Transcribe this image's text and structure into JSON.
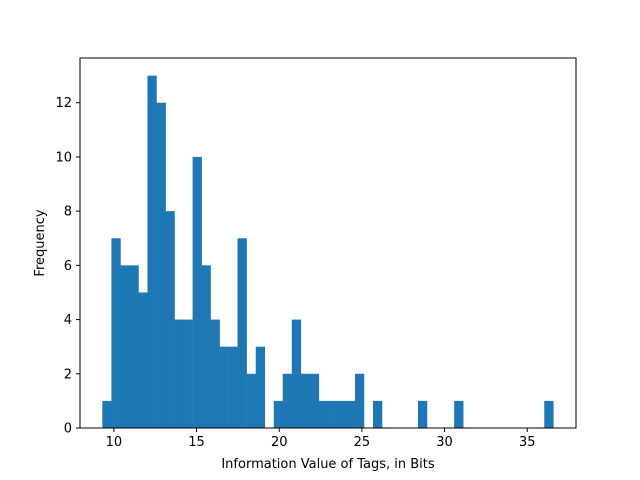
{
  "chart_data": {
    "type": "bar",
    "title": "",
    "xlabel": "Information Value of Tags, in Bits",
    "ylabel": "Frequency",
    "xlim": [
      7.95,
      37.95
    ],
    "ylim": [
      0,
      13.65
    ],
    "bin_width": 0.545,
    "x_ticks": [
      10,
      15,
      20,
      25,
      30,
      35
    ],
    "y_ticks": [
      0,
      2,
      4,
      6,
      8,
      10,
      12
    ],
    "bar_color": "#1f77b4",
    "grid": false,
    "bins": [
      {
        "x": 9.3,
        "count": 1
      },
      {
        "x": 9.85,
        "count": 7
      },
      {
        "x": 10.39,
        "count": 6
      },
      {
        "x": 10.94,
        "count": 6
      },
      {
        "x": 11.48,
        "count": 5
      },
      {
        "x": 12.03,
        "count": 13
      },
      {
        "x": 12.58,
        "count": 12
      },
      {
        "x": 13.12,
        "count": 8
      },
      {
        "x": 13.67,
        "count": 4
      },
      {
        "x": 14.21,
        "count": 4
      },
      {
        "x": 14.76,
        "count": 10
      },
      {
        "x": 15.3,
        "count": 6
      },
      {
        "x": 15.85,
        "count": 4
      },
      {
        "x": 16.39,
        "count": 3
      },
      {
        "x": 16.94,
        "count": 3
      },
      {
        "x": 17.48,
        "count": 7
      },
      {
        "x": 18.03,
        "count": 2
      },
      {
        "x": 18.58,
        "count": 3
      },
      {
        "x": 19.67,
        "count": 1
      },
      {
        "x": 20.21,
        "count": 2
      },
      {
        "x": 20.76,
        "count": 4
      },
      {
        "x": 21.3,
        "count": 2
      },
      {
        "x": 21.85,
        "count": 2
      },
      {
        "x": 22.39,
        "count": 1
      },
      {
        "x": 22.94,
        "count": 1
      },
      {
        "x": 23.48,
        "count": 1
      },
      {
        "x": 24.03,
        "count": 1
      },
      {
        "x": 24.58,
        "count": 2
      },
      {
        "x": 25.67,
        "count": 1
      },
      {
        "x": 28.39,
        "count": 1
      },
      {
        "x": 30.58,
        "count": 1
      },
      {
        "x": 36.03,
        "count": 1
      }
    ]
  }
}
